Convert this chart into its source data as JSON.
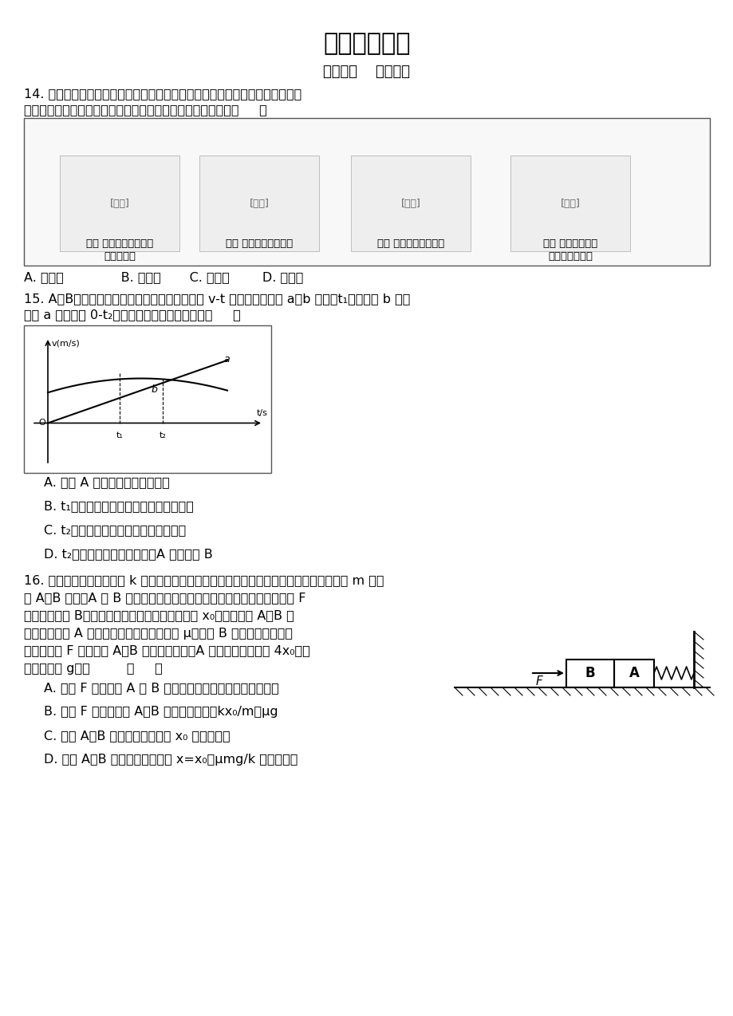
{
  "title": "理科综合物理",
  "subtitle": "命题人：    审题人：",
  "background_color": "#ffffff",
  "text_color": "#000000",
  "q14_text1": "14. 学习物理不仅要掌握物理知识，还要领悟并掌握处理物理问题的思想方法。",
  "q14_text2": "在下图所示的几个实验中，研究物理问题的思想方法相同的是（     ）",
  "q14_options": [
    "A. 甲、乙              B. 乙、丙       C. 甲、丙        D. 丙、丁"
  ],
  "q14_fig_labels": [
    "图甲 比较平抛运动和自\n由落体运动",
    "图乙 观察桌面微小形变",
    "图丙 测定万有引力常量",
    "图丁 探究加速度与\n力、质量的关系"
  ],
  "q15_text1": "15. A、B两质点同时、同地沿同一直线运动，其 v-t 图象分别如图中 a、b 所示，t₁时刻曲线 b 的切",
  "q15_text2": "线与 a 平行，在 0-t₂时间内，下列说法正确的是（     ）",
  "q15_options": [
    "A. 质点 A 一直做匀加速直线运动",
    "B. t₁时刻两质点的加速度相等，相距最远",
    "C. t₂时刻两质点的速度相等，相距最远",
    "D. t₂时刻两质点的速度相等，A 恰好追上 B"
  ],
  "q16_text1": "16. 如图所示，劲度系数为 k 的轻弹簧的一端固定在墙上，另一端与置于水平面上质量均为 m 的物",
  "q16_text2": "体 A、B 接触（A 与 B 和弹簧均未连接），弹簧水平且无形变，用水平力 F",
  "q16_text3": "缓慢推动物体 B，在弹性限度内弹簧长度被压缩了 x₀，此时物体 A、B 静",
  "q16_text4": "止，已知物体 A 与水平面间的动摩擦因数为 μ，物体 B 与水平面间的摩擦",
  "q16_text5": "不计，撤去 F 后，物体 A、B 开始向左运动，A 运动的最大距离为 4x₀，重",
  "q16_text6": "力加速度为 g，则         （     ）",
  "q16_options": [
    "A. 撤去 F 后，物体 A 和 B 先做匀加速运动，再做匀减速运动",
    "B. 撤去 F 瞬间，物体 A、B 的加速度大小为kx₀/m－μg",
    "C. 物体 A、B 一起向左运动距离 x₀ 后相互分离",
    "D. 物体 A、B 一起向左运动距离 x=x₀－μmg/k 后相互分离"
  ]
}
